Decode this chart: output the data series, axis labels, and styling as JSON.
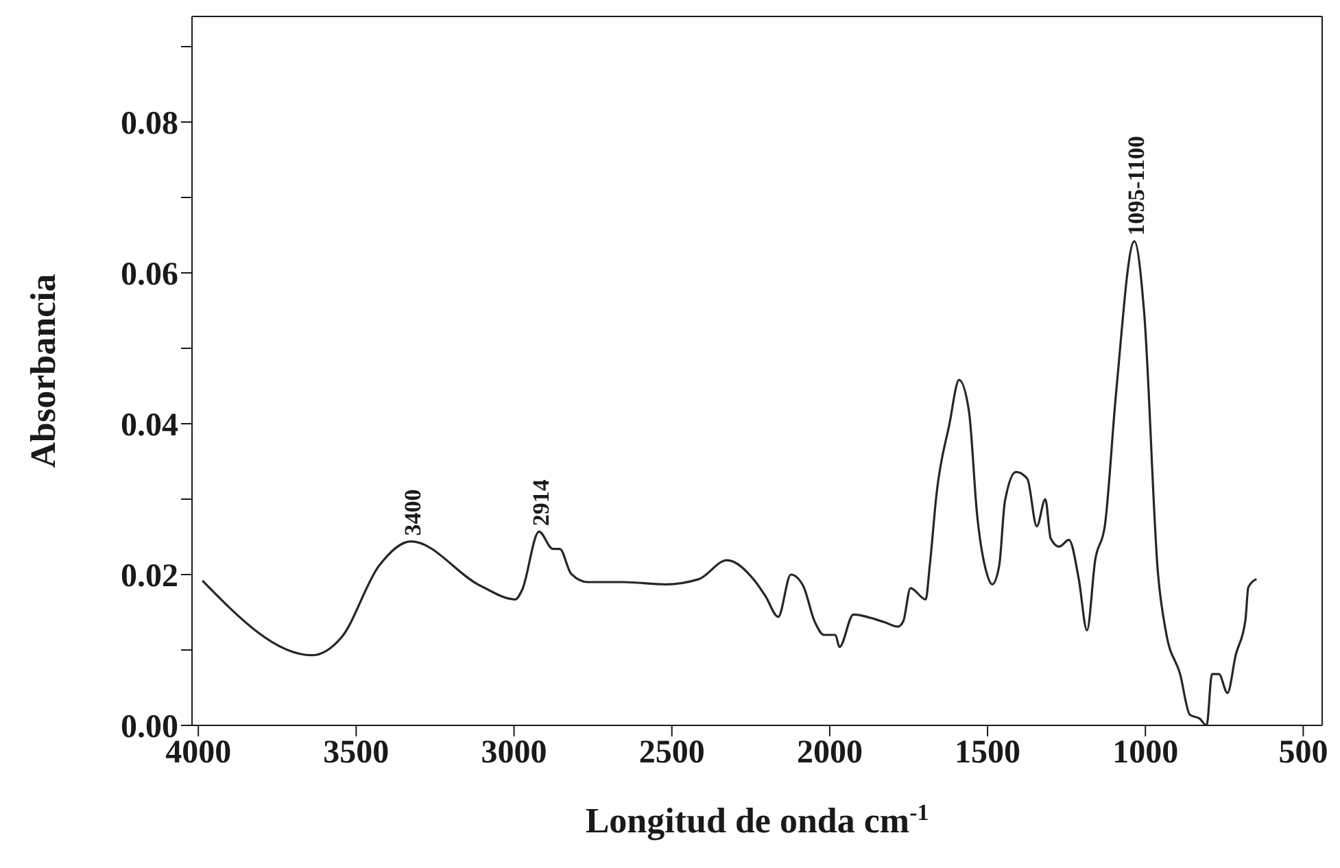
{
  "chart_data": {
    "type": "line",
    "xlabel": "Longitud de onda cm$^{-1}$",
    "ylabel": "Absorbancia",
    "x": [
      3987,
      3639,
      3546,
      3427,
      3326,
      3106,
      2996,
      2974,
      2921,
      2877,
      2855,
      2819,
      2767,
      2652,
      2520,
      2414,
      2326,
      2238,
      2203,
      2163,
      2123,
      2084,
      2048,
      2018,
      1982,
      1969,
      1925,
      1828,
      1784,
      1767,
      1744,
      1696,
      1683,
      1661,
      1621,
      1590,
      1559,
      1533,
      1502,
      1485,
      1463,
      1445,
      1410,
      1374,
      1344,
      1317,
      1300,
      1273,
      1242,
      1211,
      1185,
      1159,
      1128,
      1093,
      1035,
      1004,
      960,
      934,
      890,
      859,
      828,
      806,
      789,
      767,
      740,
      714,
      683,
      674,
      648
    ],
    "series": [
      {
        "color": "#262626",
        "values": [
          0.0192,
          0.0093,
          0.0117,
          0.0212,
          0.0244,
          0.0185,
          0.0167,
          0.018,
          0.0257,
          0.0234,
          0.0234,
          0.0201,
          0.019,
          0.019,
          0.0187,
          0.0194,
          0.0219,
          0.0192,
          0.0171,
          0.0144,
          0.02,
          0.0185,
          0.0138,
          0.012,
          0.012,
          0.0104,
          0.0147,
          0.0137,
          0.0131,
          0.0138,
          0.0182,
          0.0167,
          0.0212,
          0.0309,
          0.0399,
          0.0458,
          0.0417,
          0.0279,
          0.0201,
          0.0187,
          0.0212,
          0.0297,
          0.0336,
          0.0327,
          0.0264,
          0.03,
          0.0248,
          0.0237,
          0.0246,
          0.0194,
          0.0126,
          0.0219,
          0.0266,
          0.044,
          0.0642,
          0.0548,
          0.0201,
          0.0122,
          0.0068,
          0.0014,
          0.0009,
          0.0,
          0.0068,
          0.0068,
          0.0043,
          0.0093,
          0.014,
          0.0183,
          0.0194
        ]
      }
    ],
    "xlim": [
      4020,
      440
    ],
    "xticks": [
      4000,
      3500,
      3000,
      2500,
      2000,
      1500,
      1000,
      500
    ],
    "ylim": [
      0,
      0.094
    ],
    "yticks": [
      {
        "value": 0,
        "label": "0.00"
      },
      {
        "value": 0.01,
        "label": null
      },
      {
        "value": 0.02,
        "label": "0.02"
      },
      {
        "value": 0.03,
        "label": null
      },
      {
        "value": 0.04,
        "label": "0.04"
      },
      {
        "value": 0.05,
        "label": null
      },
      {
        "value": 0.06,
        "label": "0.06"
      },
      {
        "value": 0.07,
        "label": null
      },
      {
        "value": 0.08,
        "label": "0.08"
      },
      {
        "value": 0.09,
        "label": null
      }
    ],
    "annotations": [
      {
        "text": "3400",
        "x": 3326,
        "y": 0.0244
      },
      {
        "text": "2914",
        "x": 2921,
        "y": 0.0257
      },
      {
        "text": "1095-1100",
        "x": 1035,
        "y": 0.0642
      }
    ],
    "grid": false,
    "legend": false,
    "marker": "none",
    "line_style": "solid"
  }
}
